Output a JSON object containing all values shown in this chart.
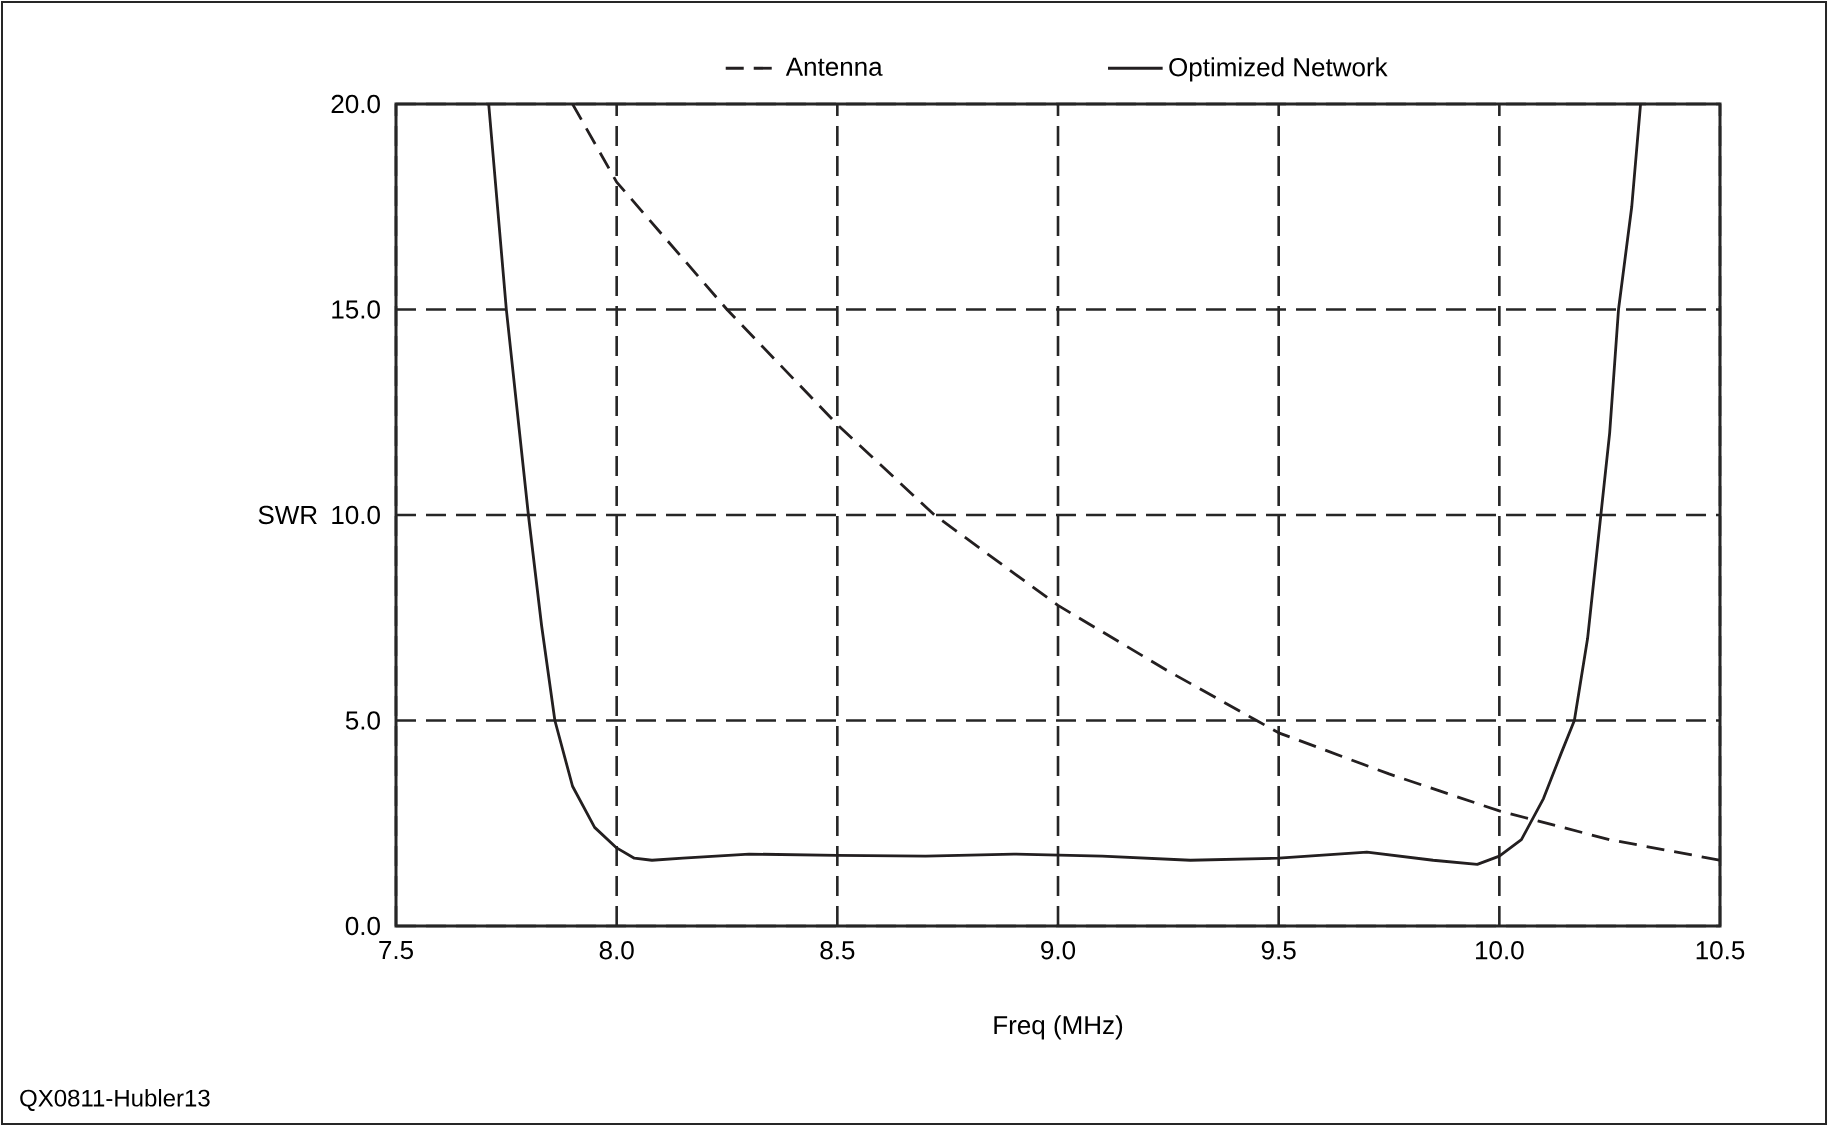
{
  "chart_data": {
    "type": "line",
    "xlabel": "Freq (MHz)",
    "ylabel": "SWR",
    "xlim": [
      7.5,
      10.5
    ],
    "xticks": [
      7.5,
      {
        "value": 8,
        "label": "8.0"
      },
      8.5,
      {
        "value": 9,
        "label": "9.0"
      },
      9.5,
      {
        "value": 10,
        "label": "10.0"
      },
      10.5
    ],
    "ylim": [
      0,
      20
    ],
    "yticks": [
      {
        "value": 0,
        "label": "0.0"
      },
      {
        "value": 5,
        "label": "5.0"
      },
      {
        "value": 10,
        "label": "10.0"
      },
      {
        "value": 15,
        "label": "15.0"
      },
      {
        "value": 20,
        "label": "20.0"
      }
    ],
    "grid": true,
    "legend": "top",
    "marker": "none",
    "series": [
      {
        "name": "Antenna",
        "color": "#231f20",
        "line_style": "dashed",
        "x": [
          7.9,
          8.0,
          8.25,
          8.5,
          8.72,
          9.0,
          9.25,
          9.45,
          9.5,
          9.75,
          10.0,
          10.25,
          10.5
        ],
        "values": [
          20,
          18.1,
          15,
          12.2,
          10,
          7.8,
          6.2,
          5.0,
          4.7,
          3.7,
          2.8,
          2.1,
          1.6
        ]
      },
      {
        "name": "Optimized Network",
        "color": "#231f20",
        "line_style": "solid",
        "x": [
          7.71,
          7.73,
          7.75,
          7.78,
          7.8,
          7.83,
          7.86,
          7.9,
          7.95,
          8.0,
          8.04,
          8.08,
          8.15,
          8.3,
          8.5,
          8.7,
          8.9,
          9.1,
          9.3,
          9.5,
          9.7,
          9.85,
          9.95,
          10.0,
          10.05,
          10.1,
          10.14,
          10.17,
          10.2,
          10.23,
          10.25,
          10.27,
          10.3,
          10.32
        ],
        "values": [
          20,
          17.5,
          15,
          12,
          10,
          7.3,
          5,
          3.4,
          2.4,
          1.9,
          1.65,
          1.6,
          1.65,
          1.75,
          1.72,
          1.7,
          1.75,
          1.7,
          1.6,
          1.65,
          1.8,
          1.6,
          1.5,
          1.7,
          2.1,
          3.1,
          4.2,
          5.0,
          7.0,
          10,
          12,
          15,
          17.5,
          20
        ]
      }
    ],
    "annotations": [
      "QX0811-Hubler13"
    ]
  }
}
